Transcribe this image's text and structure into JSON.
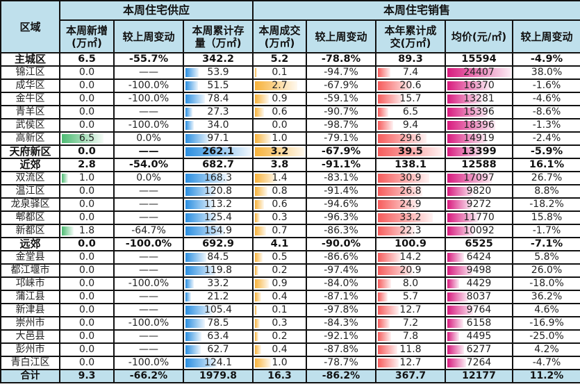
{
  "header": {
    "region": "区域",
    "supply_group": "本周住宅供应",
    "sales_group": "本周住宅销售",
    "columns": {
      "new_supply": [
        "本周新增",
        "(万㎡)"
      ],
      "supply_change": "较上周变动",
      "inventory": [
        "本周累计存",
        "量（万㎡)"
      ],
      "weekly_deal": [
        "本周成交",
        "(万㎡)"
      ],
      "deal_change": "较上周变动",
      "ytd_deal": [
        "本年累计成",
        "交(万㎡)"
      ],
      "avg_price": "均价(元/㎡)",
      "price_change": "较上周变动"
    }
  },
  "colors": {
    "header_bg": "#bfe0ec",
    "bar_green": "#4dbb73",
    "bar_blue": "#2a8ee0",
    "bar_orange": "#f7b23a",
    "bar_red": "#f65c5c",
    "bar_magenta": "#d81b7e"
  },
  "rows": [
    {
      "name": "主城区",
      "bold": true,
      "new_supply": "6.5",
      "supply_change": "-55.7%",
      "inventory": "342.2",
      "weekly_deal": "5.2",
      "deal_change": "-78.8%",
      "ytd_deal": "89.3",
      "avg_price": "15594",
      "price_change": "-4.9%"
    },
    {
      "name": "锦江区",
      "new_supply": "0.0",
      "supply_change": "——",
      "inventory": "53.9",
      "weekly_deal": "0.1",
      "deal_change": "-94.7%",
      "ytd_deal": "7.4",
      "avg_price": "24407",
      "price_change": "38.0%"
    },
    {
      "name": "成华区",
      "new_supply": "0.0",
      "supply_change": "-100.0%",
      "inventory": "51.5",
      "weekly_deal": "2.7",
      "deal_change": "-67.9%",
      "ytd_deal": "20.6",
      "avg_price": "16370",
      "price_change": "-1.6%"
    },
    {
      "name": "金牛区",
      "new_supply": "0.0",
      "supply_change": "-100.0%",
      "inventory": "78.4",
      "weekly_deal": "0.9",
      "deal_change": "-59.1%",
      "ytd_deal": "15.7",
      "avg_price": "13281",
      "price_change": "-4.6%"
    },
    {
      "name": "青羊区",
      "new_supply": "0.0",
      "supply_change": "——",
      "inventory": "27.3",
      "weekly_deal": "0.6",
      "deal_change": "-90.7%",
      "ytd_deal": "6.5",
      "avg_price": "15396",
      "price_change": "-8.6%"
    },
    {
      "name": "武侯区",
      "new_supply": "0.0",
      "supply_change": "-100.0%",
      "inventory": "34.0",
      "weekly_deal": "0.0",
      "deal_change": "-98.7%",
      "ytd_deal": "9.4",
      "avg_price": "18396",
      "price_change": "-1.3%"
    },
    {
      "name": "高新区",
      "new_supply": "6.5",
      "supply_change": "0.0%",
      "inventory": "97.1",
      "weekly_deal": "1.0",
      "deal_change": "-79.1%",
      "ytd_deal": "29.6",
      "avg_price": "14919",
      "price_change": "-2.4%"
    },
    {
      "name": "天府新区",
      "bold": true,
      "new_supply": "0.0",
      "supply_change": "——",
      "inventory": "262.1",
      "weekly_deal": "3.2",
      "deal_change": "-67.9%",
      "ytd_deal": "39.5",
      "avg_price": "13399",
      "price_change": "-5.9%"
    },
    {
      "name": "近郊",
      "bold": true,
      "new_supply": "2.8",
      "supply_change": "-54.0%",
      "inventory": "682.7",
      "weekly_deal": "3.8",
      "deal_change": "-91.1%",
      "ytd_deal": "138.1",
      "avg_price": "12588",
      "price_change": "16.1%"
    },
    {
      "name": "双流区",
      "new_supply": "1.0",
      "supply_change": "0.0%",
      "inventory": "168.3",
      "weekly_deal": "1.4",
      "deal_change": "-83.1%",
      "ytd_deal": "30.9",
      "avg_price": "17097",
      "price_change": "26.7%"
    },
    {
      "name": "温江区",
      "new_supply": "0.0",
      "supply_change": "——",
      "inventory": "120.8",
      "weekly_deal": "0.8",
      "deal_change": "-91.4%",
      "ytd_deal": "26.8",
      "avg_price": "9820",
      "price_change": "8.8%"
    },
    {
      "name": "龙泉驿区",
      "new_supply": "0.0",
      "supply_change": "——",
      "inventory": "113.2",
      "weekly_deal": "0.6",
      "deal_change": "-94.6%",
      "ytd_deal": "24.9",
      "avg_price": "9272",
      "price_change": "-18.2%"
    },
    {
      "name": "郫都区",
      "new_supply": "0.0",
      "supply_change": "——",
      "inventory": "125.4",
      "weekly_deal": "0.3",
      "deal_change": "-96.3%",
      "ytd_deal": "33.2",
      "avg_price": "11770",
      "price_change": "15.8%"
    },
    {
      "name": "新都区",
      "new_supply": "1.8",
      "supply_change": "-64.7%",
      "inventory": "154.9",
      "weekly_deal": "0.7",
      "deal_change": "-86.3%",
      "ytd_deal": "22.3",
      "avg_price": "10092",
      "price_change": "-1.7%"
    },
    {
      "name": "远郊",
      "bold": true,
      "new_supply": "0.0",
      "supply_change": "-100.0%",
      "inventory": "692.9",
      "weekly_deal": "4.1",
      "deal_change": "-90.0%",
      "ytd_deal": "100.9",
      "avg_price": "6525",
      "price_change": "-7.1%"
    },
    {
      "name": "金堂县",
      "new_supply": "0.0",
      "supply_change": "——",
      "inventory": "84.5",
      "weekly_deal": "0.5",
      "deal_change": "-86.6%",
      "ytd_deal": "14.2",
      "avg_price": "6424",
      "price_change": "5.8%"
    },
    {
      "name": "都江堰市",
      "new_supply": "0.0",
      "supply_change": "——",
      "inventory": "119.8",
      "weekly_deal": "0.2",
      "deal_change": "-97.4%",
      "ytd_deal": "20.9",
      "avg_price": "9498",
      "price_change": "26.0%"
    },
    {
      "name": "邛崃市",
      "new_supply": "0.0",
      "supply_change": "-100.0%",
      "inventory": "33.2",
      "weekly_deal": "0.9",
      "deal_change": "-84.0%",
      "ytd_deal": "8.0",
      "avg_price": "4429",
      "price_change": "-18.0%"
    },
    {
      "name": "蒲江县",
      "new_supply": "0.0",
      "supply_change": "——",
      "inventory": "21.2",
      "weekly_deal": "0.4",
      "deal_change": "-87.1%",
      "ytd_deal": "5.7",
      "avg_price": "8037",
      "price_change": "36.2%"
    },
    {
      "name": "新津县",
      "new_supply": "0.0",
      "supply_change": "——",
      "inventory": "105.4",
      "weekly_deal": "0.1",
      "deal_change": "-97.8%",
      "ytd_deal": "12.7",
      "avg_price": "9764",
      "price_change": "4.6%"
    },
    {
      "name": "崇州市",
      "new_supply": "0.0",
      "supply_change": "-100.0%",
      "inventory": "78.5",
      "weekly_deal": "0.3",
      "deal_change": "-84.3%",
      "ytd_deal": "7.2",
      "avg_price": "6158",
      "price_change": "-16.9%"
    },
    {
      "name": "大邑县",
      "new_supply": "0.0",
      "supply_change": "——",
      "inventory": "63.4",
      "weekly_deal": "0.2",
      "deal_change": "-92.1%",
      "ytd_deal": "7.8",
      "avg_price": "4495",
      "price_change": "-25.0%"
    },
    {
      "name": "彭州市",
      "new_supply": "0.0",
      "supply_change": "——",
      "inventory": "62.7",
      "weekly_deal": "0.4",
      "deal_change": "-87.8%",
      "ytd_deal": "11.8",
      "avg_price": "6277",
      "price_change": "4.2%"
    },
    {
      "name": "青白江区",
      "new_supply": "0.0",
      "supply_change": "-100.0%",
      "inventory": "124.1",
      "weekly_deal": "1.0",
      "deal_change": "-78.7%",
      "ytd_deal": "12.7",
      "avg_price": "7264",
      "price_change": "-4.7%"
    }
  ],
  "total": {
    "name": "合计",
    "new_supply": "9.3",
    "supply_change": "-66.2%",
    "inventory": "1979.8",
    "weekly_deal": "16.3",
    "deal_change": "-86.2%",
    "ytd_deal": "367.7",
    "avg_price": "12177",
    "price_change": "11.2%"
  }
}
